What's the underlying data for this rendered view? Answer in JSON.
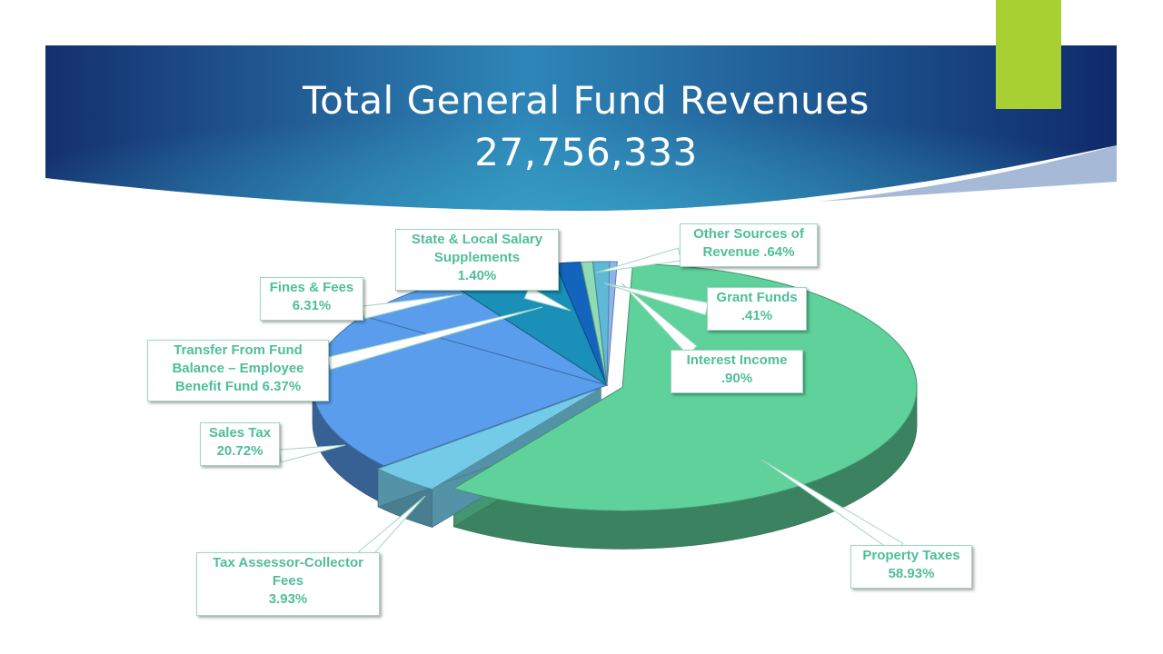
{
  "slide": {
    "title_line1": "Total General Fund Revenues",
    "title_line2": "27,756,333",
    "colors": {
      "banner_dark": "#0f2a6b",
      "banner_light": "#2e86b8",
      "accent_tab": "#a8d033"
    }
  },
  "chart_data": {
    "type": "pie",
    "variant": "3d-exploded",
    "title": "Total General Fund Revenues 27,756,333",
    "slices": [
      {
        "name": "Property Taxes",
        "value": 58.93,
        "color": "#5fd19b",
        "label_lines": [
          "Property Taxes",
          "58.93%"
        ]
      },
      {
        "name": "Tax Assessor-Collector Fees",
        "value": 3.93,
        "color": "#74cbe8",
        "label_lines": [
          "Tax Assessor-Collector",
          "Fees",
          "3.93%"
        ]
      },
      {
        "name": "Sales Tax",
        "value": 20.72,
        "color": "#5a9ded",
        "label_lines": [
          "Sales Tax",
          "20.72%"
        ]
      },
      {
        "name": "Transfer From Fund Balance – Employee Benefit Fund",
        "value": 6.37,
        "color": "#5a9ded",
        "label_lines": [
          "Transfer From Fund",
          "Balance – Employee",
          "Benefit Fund 6.37%"
        ]
      },
      {
        "name": "Fines & Fees",
        "value": 6.31,
        "color": "#1a8fb8",
        "label_lines": [
          "Fines & Fees",
          "6.31%"
        ]
      },
      {
        "name": "State & Local Salary Supplements",
        "value": 1.4,
        "color": "#1364bd",
        "label_lines": [
          "State & Local Salary",
          "Supplements",
          "1.40%"
        ]
      },
      {
        "name": "Other Sources of Revenue",
        "value": 0.64,
        "color": "#8fdcb4",
        "label_lines": [
          "Other Sources of",
          "Revenue .64%"
        ]
      },
      {
        "name": "Interest Income",
        "value": 0.9,
        "color": "#5fb8d6",
        "label_lines": [
          "Interest Income",
          ".90%"
        ]
      },
      {
        "name": "Grant Funds",
        "value": 0.41,
        "color": "#8ab6ee",
        "label_lines": [
          "Grant Funds",
          ".41%"
        ]
      }
    ]
  }
}
